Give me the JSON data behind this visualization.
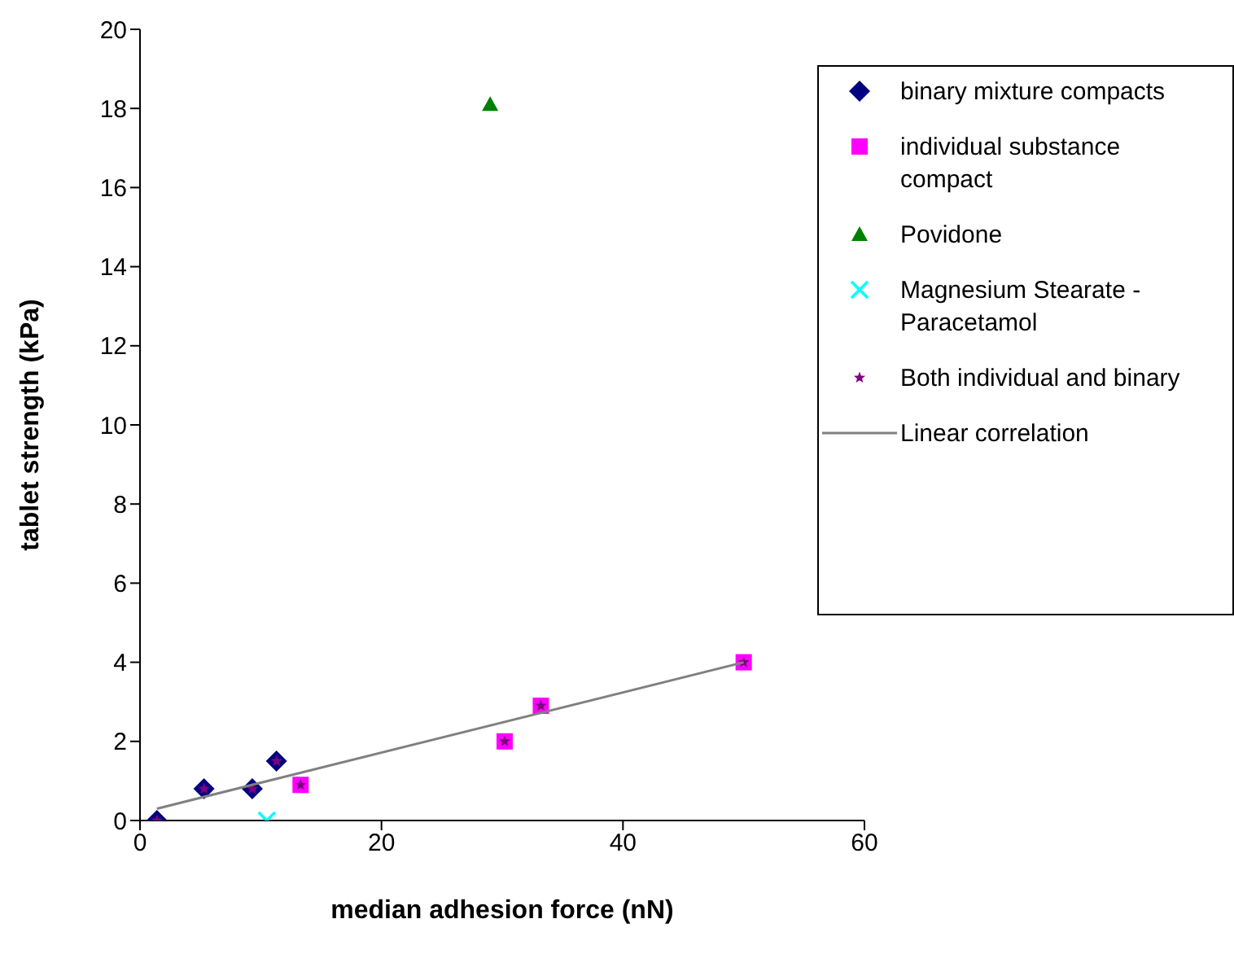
{
  "chart_data": {
    "type": "scatter",
    "xlabel": "median adhesion force (nN)",
    "ylabel": "tablet strength (kPa)",
    "xlim": [
      0,
      60
    ],
    "xticks": [
      0,
      20,
      40,
      60
    ],
    "ylim": [
      0,
      20
    ],
    "yticks": [
      0,
      2,
      4,
      6,
      8,
      10,
      12,
      14,
      16,
      18,
      20
    ],
    "grid": false,
    "legend": "right",
    "series": [
      {
        "name": "binary mixture compacts",
        "color": "#000080",
        "marker": "diamond",
        "x": [
          1.4,
          5.3,
          9.3,
          11.3
        ],
        "values": [
          0,
          0.8,
          0.8,
          1.5
        ]
      },
      {
        "name": "individual substance compact",
        "color": "#ff00ff",
        "marker": "square",
        "x": [
          13.3,
          30.2,
          33.2,
          50
        ],
        "values": [
          0.9,
          2,
          2.9,
          4
        ]
      },
      {
        "name": "Povidone",
        "color": "#008000",
        "marker": "triangle",
        "x": [
          29
        ],
        "values": [
          18.1
        ]
      },
      {
        "name": "Magnesium Stearate - Paracetamol",
        "color": "#00ffff",
        "marker": "cross",
        "x": [
          10.5
        ],
        "values": [
          0
        ]
      },
      {
        "name": "Both individual and binary",
        "color": "#800080",
        "marker": "star",
        "x": [
          1.4,
          5.3,
          9.3,
          11.3,
          13.3,
          30.2,
          33.2,
          50
        ],
        "values": [
          0,
          0.8,
          0.8,
          1.5,
          0.9,
          2,
          2.9,
          4
        ]
      },
      {
        "name": "Linear correlation",
        "type": "line",
        "color": "#808080",
        "marker": "none",
        "x": [
          1.4,
          50
        ],
        "values": [
          0.3,
          4
        ]
      }
    ]
  }
}
